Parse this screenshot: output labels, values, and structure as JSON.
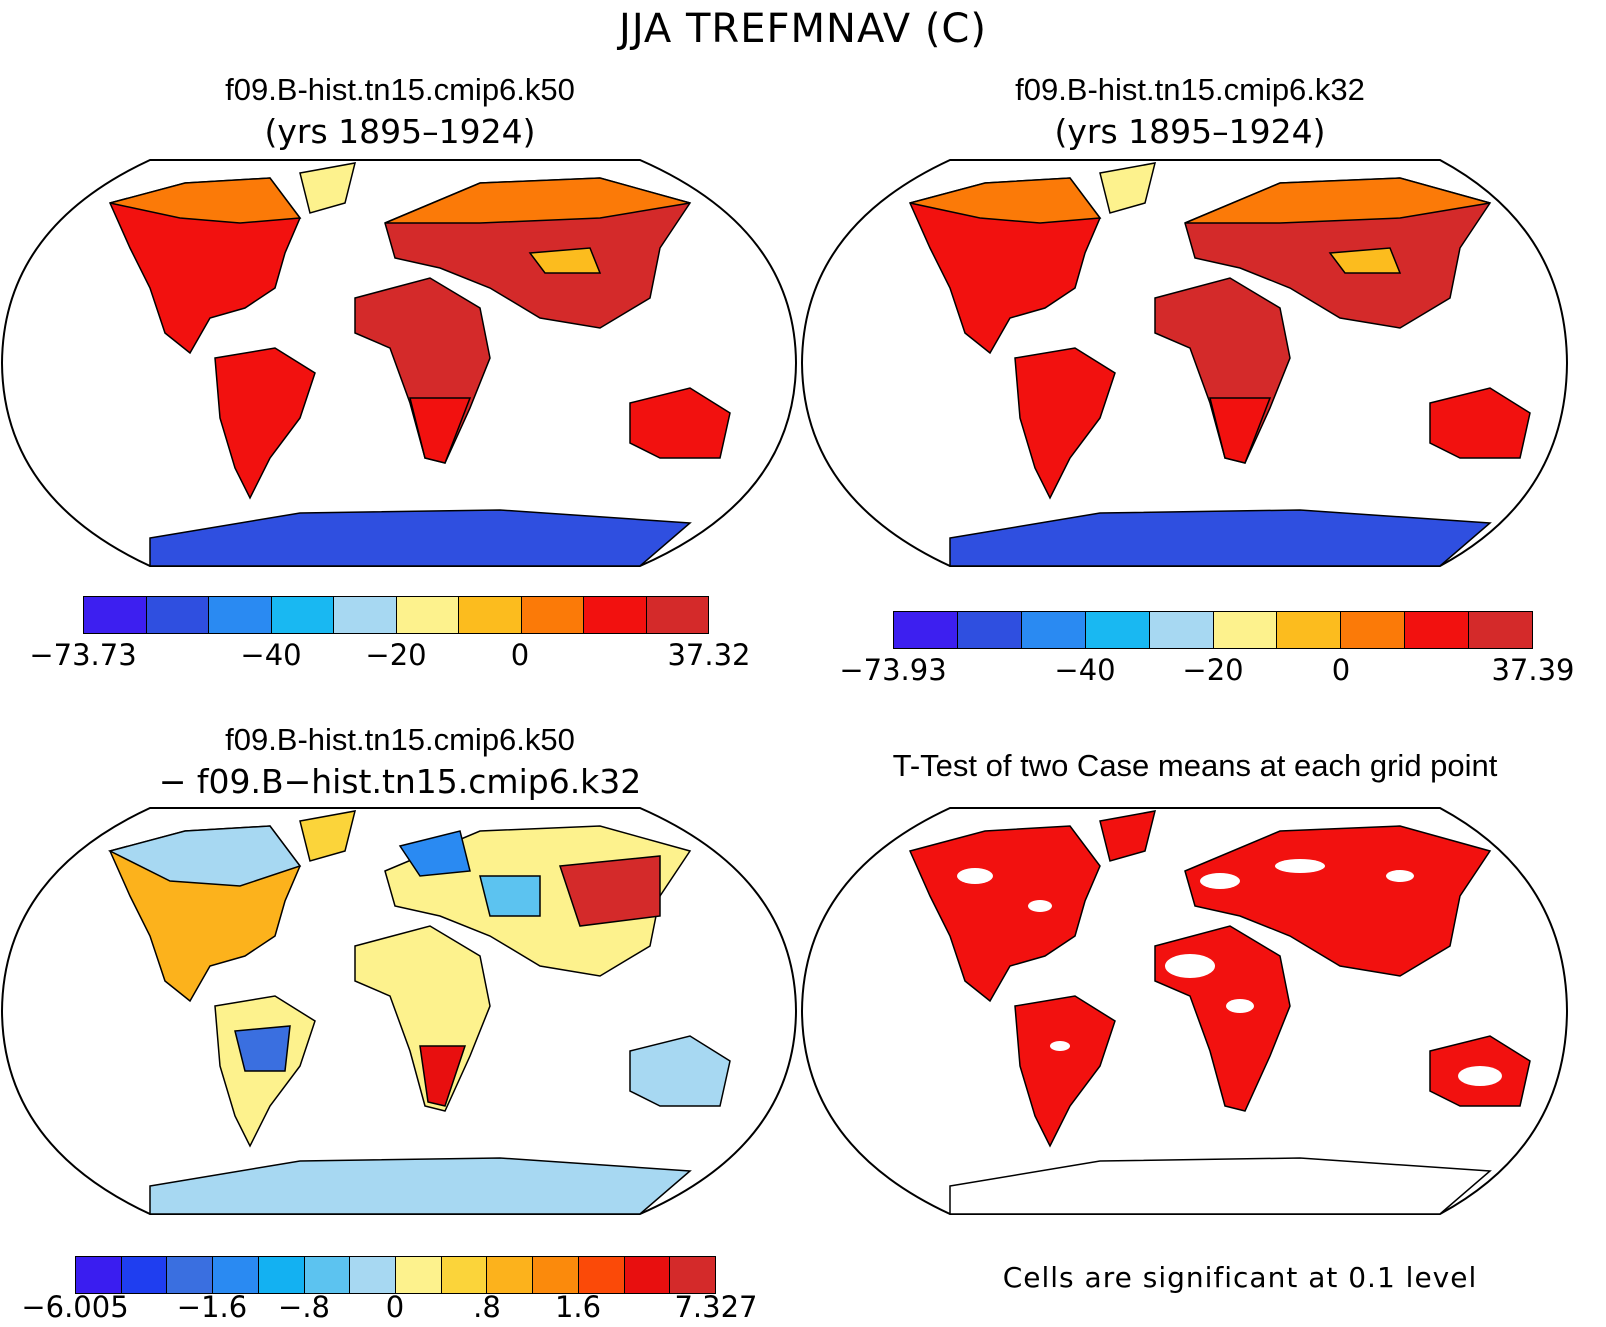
{
  "figure": {
    "title": "JJA TREFMNAV (C)"
  },
  "panels": {
    "case1": {
      "title": "f09.B-hist.tn15.cmip6.k50",
      "subtitle": "(yrs 1895–1924)",
      "colorbar": {
        "colors": [
          "#3d1ff0",
          "#2f4fe0",
          "#2a8af2",
          "#19b8f2",
          "#a7d8f2",
          "#fdf28d",
          "#fcbc1e",
          "#fb7a08",
          "#f2110f",
          "#d42a2a"
        ],
        "labels": [
          "−73.73",
          "−40",
          "−20",
          "0",
          "37.32"
        ]
      }
    },
    "case2": {
      "title": "f09.B-hist.tn15.cmip6.k32",
      "subtitle": "(yrs 1895–1924)",
      "colorbar": {
        "colors": [
          "#3d1ff0",
          "#2f4fe0",
          "#2a8af2",
          "#19b8f2",
          "#a7d8f2",
          "#fdf28d",
          "#fcbc1e",
          "#fb7a08",
          "#f2110f",
          "#d42a2a"
        ],
        "labels": [
          "−73.93",
          "−40",
          "−20",
          "0",
          "37.39"
        ]
      }
    },
    "difference": {
      "title": "f09.B-hist.tn15.cmip6.k50",
      "subtitle": "− f09.B−hist.tn15.cmip6.k32",
      "colorbar": {
        "colors": [
          "#3a1df0",
          "#1f3ef0",
          "#3a6fe0",
          "#2a8af2",
          "#13b1f2",
          "#5cc3f0",
          "#a7d8f2",
          "#fdf28d",
          "#fbd43a",
          "#fcb21c",
          "#fb8a0c",
          "#fb4a08",
          "#e80f0f",
          "#d42a2a"
        ],
        "labels": [
          "−6.005",
          "−1.6",
          "−.8",
          "0",
          ".8",
          "1.6",
          "7.327"
        ]
      }
    },
    "ttest": {
      "title": "T-Test of two Case means at each grid point",
      "note": "Cells are significant at 0.1 level",
      "sig_color": "#f2110f"
    }
  }
}
